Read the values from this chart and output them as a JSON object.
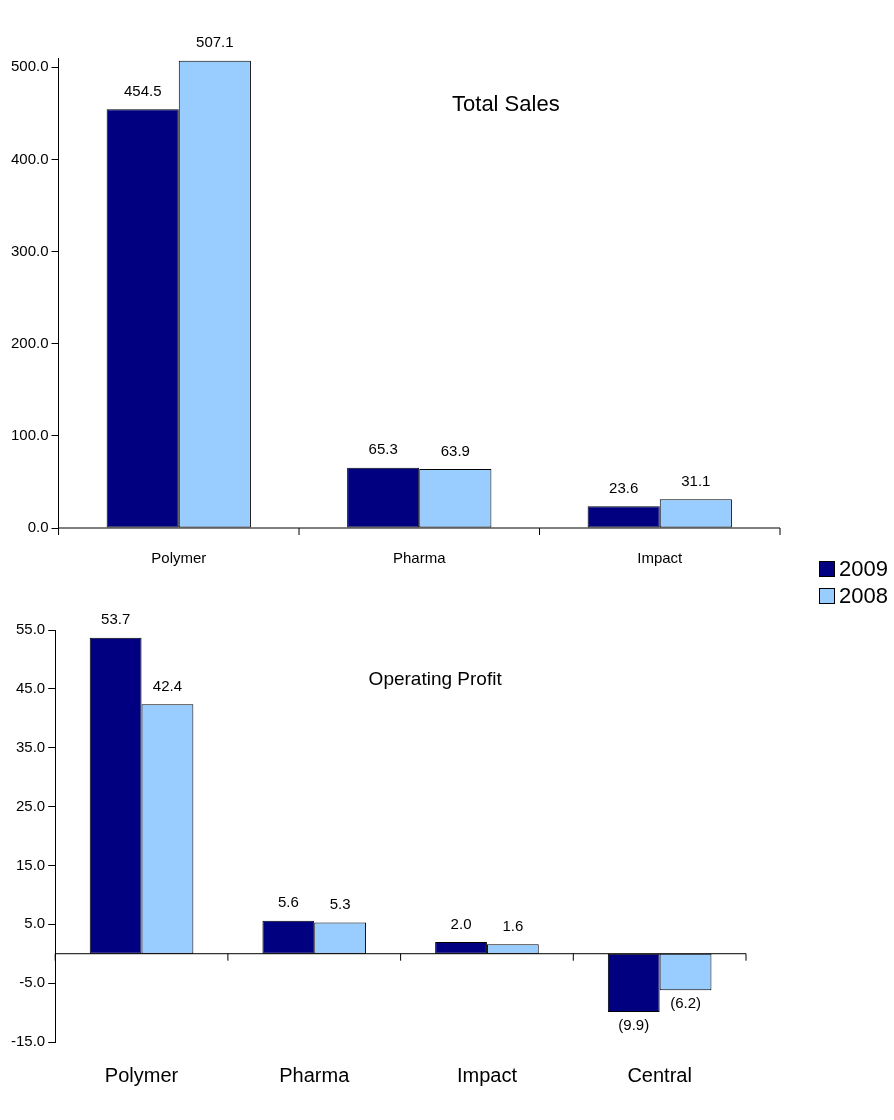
{
  "chart_data": [
    {
      "type": "bar",
      "title": "Total Sales",
      "categories": [
        "Polymer",
        "Pharma",
        "Impact"
      ],
      "series": [
        {
          "name": "2009",
          "color": "#000080",
          "values": [
            454.5,
            65.3,
            23.6
          ],
          "value_labels": [
            "454.5",
            "65.3",
            "23.6"
          ]
        },
        {
          "name": "2008",
          "color": "#99ccff",
          "values": [
            507.1,
            63.9,
            31.1
          ],
          "value_labels": [
            "507.1",
            "63.9",
            "31.1"
          ]
        }
      ],
      "ylim": [
        0,
        510
      ],
      "yticks": [
        {
          "value": 0,
          "label": "0.0"
        },
        {
          "value": 100,
          "label": "100.0"
        },
        {
          "value": 200,
          "label": "200.0"
        },
        {
          "value": 300,
          "label": "300.0"
        },
        {
          "value": 400,
          "label": "400.0"
        },
        {
          "value": 500,
          "label": "500.0"
        }
      ],
      "grid": false,
      "legend": "bottom right"
    },
    {
      "type": "bar",
      "title": "Operating Profit",
      "categories": [
        "Polymer",
        "Pharma",
        "Impact",
        "Central"
      ],
      "series": [
        {
          "name": "2009",
          "color": "#000080",
          "values": [
            53.7,
            5.6,
            2.0,
            -9.9
          ],
          "value_labels": [
            "53.7",
            "5.6",
            "2.0",
            "(9.9)"
          ]
        },
        {
          "name": "2008",
          "color": "#99ccff",
          "values": [
            42.4,
            5.3,
            1.6,
            -6.2
          ],
          "value_labels": [
            "42.4",
            "5.3",
            "1.6",
            "(6.2)"
          ]
        }
      ],
      "ylim": [
        -15,
        55
      ],
      "yticks": [
        {
          "value": -15,
          "label": "-15.0"
        },
        {
          "value": -5,
          "label": "-5.0"
        },
        {
          "value": 5,
          "label": "5.0"
        },
        {
          "value": 15,
          "label": "15.0"
        },
        {
          "value": 25,
          "label": "25.0"
        },
        {
          "value": 35,
          "label": "35.0"
        },
        {
          "value": 45,
          "label": "45.0"
        },
        {
          "value": 55,
          "label": "55.0"
        }
      ],
      "grid": false,
      "legend": false
    }
  ]
}
